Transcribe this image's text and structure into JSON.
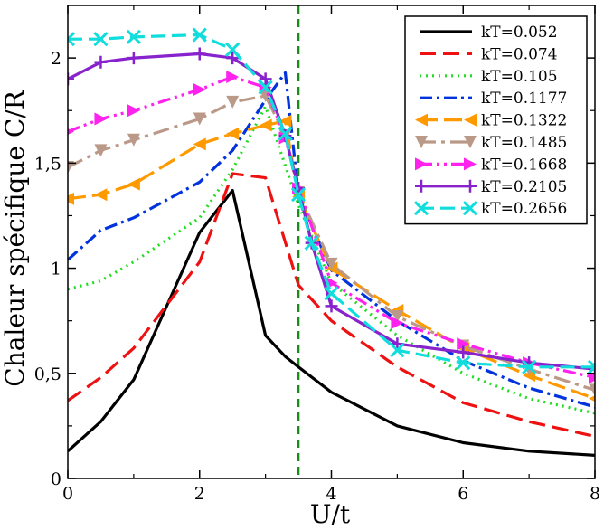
{
  "chart_data": {
    "type": "line",
    "title": "",
    "xlabel": "U/t",
    "ylabel": "Chaleur spécifique C/R",
    "xlim": [
      0,
      8
    ],
    "ylim": [
      0,
      2.25
    ],
    "xticks": [
      0,
      2,
      4,
      6,
      8
    ],
    "xtick_labels": [
      "0",
      "2",
      "4",
      "6",
      "8"
    ],
    "yticks": [
      0,
      0.5,
      1,
      1.5,
      2
    ],
    "ytick_labels": [
      "0",
      "0,5",
      "1",
      "1,5",
      "2"
    ],
    "grid": false,
    "legend_position": "top-right",
    "vline": {
      "x": 3.5,
      "color": "#1a8c1a",
      "style": "dashed"
    },
    "series": [
      {
        "name": "kT=0.052",
        "color": "#000000",
        "dash": "",
        "marker": "none",
        "x": [
          0,
          0.5,
          1,
          2,
          2.5,
          3,
          3.3,
          3.5,
          4,
          5,
          6,
          7,
          8
        ],
        "y": [
          0.13,
          0.27,
          0.47,
          1.17,
          1.37,
          0.68,
          0.58,
          0.53,
          0.41,
          0.25,
          0.17,
          0.13,
          0.11
        ]
      },
      {
        "name": "kT=0.074",
        "color": "#ee1111",
        "dash": "18,8",
        "marker": "none",
        "x": [
          0,
          0.5,
          1,
          2,
          2.5,
          3,
          3.5,
          4,
          5,
          6,
          7,
          8
        ],
        "y": [
          0.37,
          0.48,
          0.62,
          1.03,
          1.45,
          1.43,
          0.92,
          0.75,
          0.53,
          0.36,
          0.27,
          0.2
        ]
      },
      {
        "name": "kT=0.105",
        "color": "#22dd22",
        "dash": "2,5",
        "marker": "none",
        "x": [
          0,
          0.5,
          1,
          2,
          2.5,
          3,
          3.5,
          4,
          5,
          6,
          7,
          8
        ],
        "y": [
          0.9,
          0.94,
          1.03,
          1.24,
          1.47,
          1.77,
          1.3,
          0.93,
          0.68,
          0.5,
          0.38,
          0.31
        ]
      },
      {
        "name": "kT=0.1177",
        "color": "#0033dd",
        "dash": "14,5,3,5",
        "marker": "none",
        "x": [
          0,
          0.5,
          1,
          2,
          2.5,
          3,
          3.3,
          3.5,
          4,
          5,
          6,
          7,
          8
        ],
        "y": [
          1.04,
          1.18,
          1.24,
          1.41,
          1.56,
          1.8,
          1.93,
          1.35,
          0.99,
          0.75,
          0.56,
          0.43,
          0.34
        ]
      },
      {
        "name": "kT=0.1322",
        "color": "#ff9900",
        "dash": "20,7",
        "marker": "triangle-left",
        "x": [
          0,
          0.5,
          1,
          2,
          2.5,
          3,
          3.3,
          3.5,
          4,
          5,
          6,
          7,
          8
        ],
        "y": [
          1.33,
          1.35,
          1.4,
          1.59,
          1.64,
          1.68,
          1.7,
          1.34,
          1.0,
          0.8,
          0.62,
          0.49,
          0.38
        ]
      },
      {
        "name": "kT=0.1485",
        "color": "#bb9988",
        "dash": "18,6,4,6",
        "marker": "triangle-down",
        "x": [
          0,
          0.5,
          1,
          2,
          2.5,
          3,
          3.3,
          3.5,
          4,
          5,
          6,
          7,
          8
        ],
        "y": [
          1.48,
          1.56,
          1.61,
          1.71,
          1.79,
          1.82,
          1.63,
          1.36,
          1.02,
          0.77,
          0.63,
          0.52,
          0.42
        ]
      },
      {
        "name": "kT=0.1668",
        "color": "#ff22ee",
        "dash": "14,5,3,5,3,5",
        "marker": "triangle-right",
        "x": [
          0,
          0.5,
          1,
          2,
          2.5,
          3,
          3.3,
          3.5,
          4,
          5,
          6,
          7,
          8
        ],
        "y": [
          1.65,
          1.71,
          1.75,
          1.85,
          1.91,
          1.86,
          1.62,
          1.38,
          0.93,
          0.74,
          0.64,
          0.55,
          0.48
        ]
      },
      {
        "name": "kT=0.2105",
        "color": "#8822cc",
        "dash": "",
        "marker": "plus",
        "x": [
          0,
          0.5,
          1,
          2,
          2.5,
          3,
          3.3,
          3.5,
          3.7,
          4,
          5,
          6,
          7,
          8
        ],
        "y": [
          1.9,
          1.98,
          2.0,
          2.02,
          2.0,
          1.9,
          1.63,
          1.38,
          1.12,
          0.82,
          0.64,
          0.6,
          0.55,
          0.52
        ]
      },
      {
        "name": "kT=0.2656",
        "color": "#11dddd",
        "dash": "16,7",
        "marker": "x",
        "x": [
          0,
          0.5,
          1,
          2,
          2.5,
          3,
          3.3,
          3.5,
          3.7,
          4,
          5,
          6,
          7,
          8
        ],
        "y": [
          2.09,
          2.09,
          2.1,
          2.11,
          2.04,
          1.86,
          1.64,
          1.35,
          1.12,
          0.88,
          0.61,
          0.55,
          0.53,
          0.53
        ]
      }
    ]
  }
}
